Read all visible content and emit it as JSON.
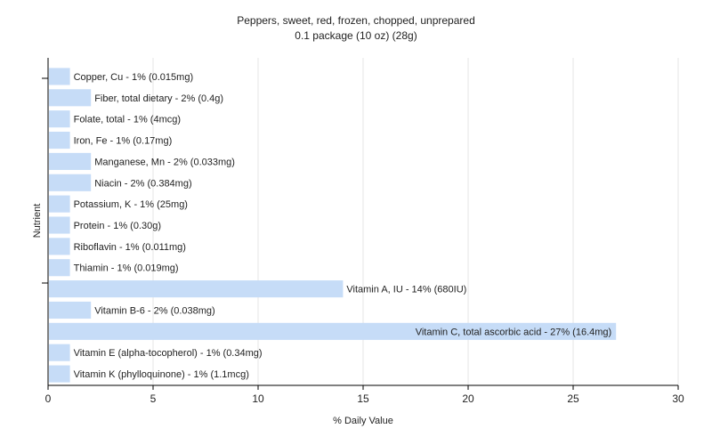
{
  "chart_data": {
    "type": "bar",
    "orientation": "horizontal",
    "title": "Peppers, sweet, red, frozen, chopped, unprepared",
    "subtitle": "0.1 package (10 oz) (28g)",
    "xlabel": "% Daily Value",
    "ylabel": "Nutrient",
    "xlim": [
      0,
      30
    ],
    "xticks": [
      0,
      5,
      10,
      15,
      20,
      25,
      30
    ],
    "grid": true,
    "bar_color": "#c6dcf7",
    "categories": [
      "Copper, Cu",
      "Fiber, total dietary",
      "Folate, total",
      "Iron, Fe",
      "Manganese, Mn",
      "Niacin",
      "Potassium, K",
      "Protein",
      "Riboflavin",
      "Thiamin",
      "Vitamin A, IU",
      "Vitamin B-6",
      "Vitamin C, total ascorbic acid",
      "Vitamin E (alpha-tocopherol)",
      "Vitamin K (phylloquinone)"
    ],
    "values": [
      1,
      2,
      1,
      1,
      2,
      2,
      1,
      1,
      1,
      1,
      14,
      2,
      27,
      1,
      1
    ],
    "labels": [
      "Copper, Cu - 1% (0.015mg)",
      "Fiber, total dietary - 2% (0.4g)",
      "Folate, total - 1% (4mcg)",
      "Iron, Fe - 1% (0.17mg)",
      "Manganese, Mn - 2% (0.033mg)",
      "Niacin - 2% (0.384mg)",
      "Potassium, K - 1% (25mg)",
      "Protein - 1% (0.30g)",
      "Riboflavin - 1% (0.011mg)",
      "Thiamin - 1% (0.019mg)",
      "Vitamin A, IU - 14% (680IU)",
      "Vitamin B-6 - 2% (0.038mg)",
      "Vitamin C, total ascorbic acid - 27% (16.4mg)",
      "Vitamin E (alpha-tocopherol) - 1% (0.34mg)",
      "Vitamin K (phylloquinone) - 1% (1.1mcg)"
    ]
  }
}
